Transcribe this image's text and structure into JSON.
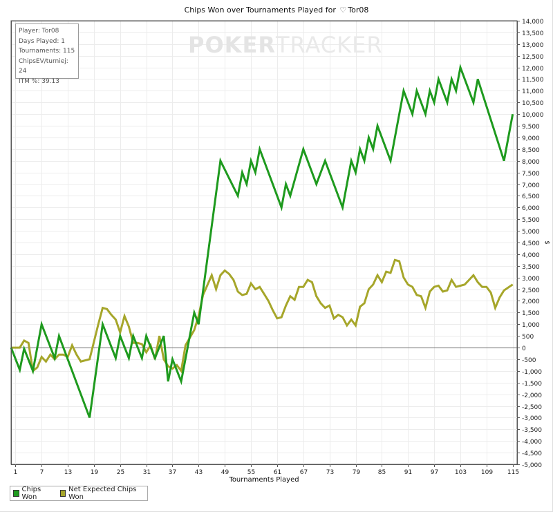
{
  "title": {
    "prefix": "Chips Won over Tournaments Played for",
    "player": "Tor08"
  },
  "info": {
    "player": "Player: Tor08",
    "days": "Days Played: 1",
    "tournaments": "Tournaments: 115",
    "chipsev": "ChipsEV/turniej: 24",
    "itm": "ITM %: 39.13"
  },
  "watermark": {
    "bold": "POKER",
    "thin": "TRACKER"
  },
  "legend": [
    {
      "label": "Chips Won",
      "color": "#1e9a1e"
    },
    {
      "label": "Net Expected Chips Won",
      "color": "#a6a62a"
    }
  ],
  "chart_data": {
    "type": "line",
    "title": "Chips Won over Tournaments Played for Tor08",
    "xlabel": "Tournaments Played",
    "ylabel": "$",
    "xlim": [
      0,
      116
    ],
    "ylim": [
      -5000,
      14000
    ],
    "x_ticks": [
      1,
      7,
      13,
      19,
      25,
      31,
      37,
      43,
      49,
      55,
      61,
      67,
      73,
      79,
      85,
      91,
      97,
      103,
      109,
      115
    ],
    "y_ticks": [
      -5000,
      -4500,
      -4000,
      -3500,
      -3000,
      -2500,
      -2000,
      -1500,
      -1000,
      -500,
      0,
      500,
      1000,
      1500,
      2000,
      2500,
      3000,
      3500,
      4000,
      4500,
      5000,
      5500,
      6000,
      6500,
      7000,
      7500,
      8000,
      8500,
      9000,
      9500,
      10000,
      10500,
      11000,
      11500,
      12000,
      12500,
      13000,
      13500,
      14000
    ],
    "y_tick_labels": [
      "-5,000",
      "-4,500",
      "-4,000",
      "-3,500",
      "-3,000",
      "-2,500",
      "-2,000",
      "-1,500",
      "-1,000",
      "-500",
      "0",
      "500",
      "1,000",
      "1,500",
      "2,000",
      "2,500",
      "3,000",
      "3,500",
      "4,000",
      "4,500",
      "5,000",
      "5,500",
      "6,000",
      "6,500",
      "7,000",
      "7,500",
      "8,000",
      "8,500",
      "9,000",
      "9,500",
      "10,000",
      "10,500",
      "11,000",
      "11,500",
      "12,000",
      "12,500",
      "13,000",
      "13,500",
      "14,000"
    ],
    "grid": true,
    "legend_position": "bottom-left",
    "series": [
      {
        "name": "Chips Won",
        "color": "#1e9a1e",
        "points": [
          [
            0,
            0
          ],
          [
            2,
            -950
          ],
          [
            3,
            -50
          ],
          [
            5,
            -1000
          ],
          [
            7,
            1000
          ],
          [
            10,
            -450
          ],
          [
            11,
            500
          ],
          [
            13,
            -500
          ],
          [
            18,
            -3000
          ],
          [
            21,
            1000
          ],
          [
            24,
            -450
          ],
          [
            25,
            500
          ],
          [
            27,
            -450
          ],
          [
            28,
            500
          ],
          [
            30,
            -450
          ],
          [
            31,
            500
          ],
          [
            33,
            -450
          ],
          [
            35,
            500
          ],
          [
            36,
            -1450
          ],
          [
            37,
            -500
          ],
          [
            39,
            -1450
          ],
          [
            42,
            1500
          ],
          [
            43,
            1000
          ],
          [
            48,
            8000
          ],
          [
            52,
            6500
          ],
          [
            53,
            7500
          ],
          [
            54,
            7000
          ],
          [
            55,
            8000
          ],
          [
            56,
            7500
          ],
          [
            57,
            8500
          ],
          [
            62,
            6000
          ],
          [
            63,
            7000
          ],
          [
            64,
            6500
          ],
          [
            67,
            8500
          ],
          [
            70,
            7000
          ],
          [
            72,
            8000
          ],
          [
            76,
            6000
          ],
          [
            78,
            8000
          ],
          [
            79,
            7500
          ],
          [
            80,
            8500
          ],
          [
            81,
            8000
          ],
          [
            82,
            9000
          ],
          [
            83,
            8500
          ],
          [
            84,
            9500
          ],
          [
            87,
            8000
          ],
          [
            90,
            11000
          ],
          [
            92,
            10000
          ],
          [
            93,
            11000
          ],
          [
            95,
            10000
          ],
          [
            96,
            11000
          ],
          [
            97,
            10500
          ],
          [
            98,
            11500
          ],
          [
            100,
            10500
          ],
          [
            101,
            11500
          ],
          [
            102,
            11000
          ],
          [
            103,
            12000
          ],
          [
            106,
            10500
          ],
          [
            107,
            11500
          ],
          [
            113,
            8000
          ],
          [
            115,
            10000
          ]
        ]
      },
      {
        "name": "Net Expected Chips Won",
        "color": "#a6a62a",
        "points": [
          [
            0,
            0
          ],
          [
            2,
            0
          ],
          [
            3,
            300
          ],
          [
            4,
            200
          ],
          [
            5,
            -1000
          ],
          [
            6,
            -850
          ],
          [
            7,
            -400
          ],
          [
            8,
            -600
          ],
          [
            9,
            -300
          ],
          [
            10,
            -500
          ],
          [
            11,
            -300
          ],
          [
            12,
            -300
          ],
          [
            13,
            -400
          ],
          [
            14,
            100
          ],
          [
            15,
            -300
          ],
          [
            16,
            -600
          ],
          [
            17,
            -550
          ],
          [
            18,
            -500
          ],
          [
            20,
            1000
          ],
          [
            21,
            1700
          ],
          [
            22,
            1650
          ],
          [
            23,
            1400
          ],
          [
            24,
            1200
          ],
          [
            25,
            650
          ],
          [
            26,
            1350
          ],
          [
            27,
            900
          ],
          [
            28,
            200
          ],
          [
            29,
            200
          ],
          [
            30,
            150
          ],
          [
            31,
            -200
          ],
          [
            32,
            100
          ],
          [
            33,
            -500
          ],
          [
            34,
            500
          ],
          [
            35,
            -500
          ],
          [
            36,
            -800
          ],
          [
            37,
            -900
          ],
          [
            38,
            -750
          ],
          [
            39,
            -1000
          ],
          [
            40,
            100
          ],
          [
            42,
            750
          ],
          [
            43,
            1350
          ],
          [
            44,
            2250
          ],
          [
            46,
            3100
          ],
          [
            47,
            2500
          ],
          [
            48,
            3100
          ],
          [
            49,
            3300
          ],
          [
            50,
            3150
          ],
          [
            51,
            2900
          ],
          [
            52,
            2400
          ],
          [
            53,
            2250
          ],
          [
            54,
            2300
          ],
          [
            55,
            2750
          ],
          [
            56,
            2500
          ],
          [
            57,
            2600
          ],
          [
            58,
            2300
          ],
          [
            59,
            2000
          ],
          [
            60,
            1600
          ],
          [
            61,
            1250
          ],
          [
            62,
            1300
          ],
          [
            63,
            1800
          ],
          [
            64,
            2200
          ],
          [
            65,
            2050
          ],
          [
            66,
            2600
          ],
          [
            67,
            2600
          ],
          [
            68,
            2900
          ],
          [
            69,
            2800
          ],
          [
            70,
            2200
          ],
          [
            71,
            1900
          ],
          [
            72,
            1700
          ],
          [
            73,
            1800
          ],
          [
            74,
            1250
          ],
          [
            75,
            1400
          ],
          [
            76,
            1300
          ],
          [
            77,
            950
          ],
          [
            78,
            1200
          ],
          [
            79,
            950
          ],
          [
            80,
            1750
          ],
          [
            81,
            1900
          ],
          [
            82,
            2500
          ],
          [
            83,
            2700
          ],
          [
            84,
            3100
          ],
          [
            85,
            2800
          ],
          [
            86,
            3250
          ],
          [
            87,
            3200
          ],
          [
            88,
            3750
          ],
          [
            89,
            3700
          ],
          [
            90,
            3000
          ],
          [
            91,
            2700
          ],
          [
            92,
            2600
          ],
          [
            93,
            2250
          ],
          [
            94,
            2200
          ],
          [
            95,
            1700
          ],
          [
            96,
            2400
          ],
          [
            97,
            2600
          ],
          [
            98,
            2650
          ],
          [
            99,
            2400
          ],
          [
            100,
            2450
          ],
          [
            101,
            2900
          ],
          [
            102,
            2600
          ],
          [
            103,
            2650
          ],
          [
            104,
            2700
          ],
          [
            105,
            2900
          ],
          [
            106,
            3100
          ],
          [
            107,
            2800
          ],
          [
            108,
            2600
          ],
          [
            109,
            2600
          ],
          [
            110,
            2350
          ],
          [
            111,
            1700
          ],
          [
            112,
            2150
          ],
          [
            113,
            2450
          ],
          [
            115,
            2700
          ]
        ]
      }
    ]
  }
}
